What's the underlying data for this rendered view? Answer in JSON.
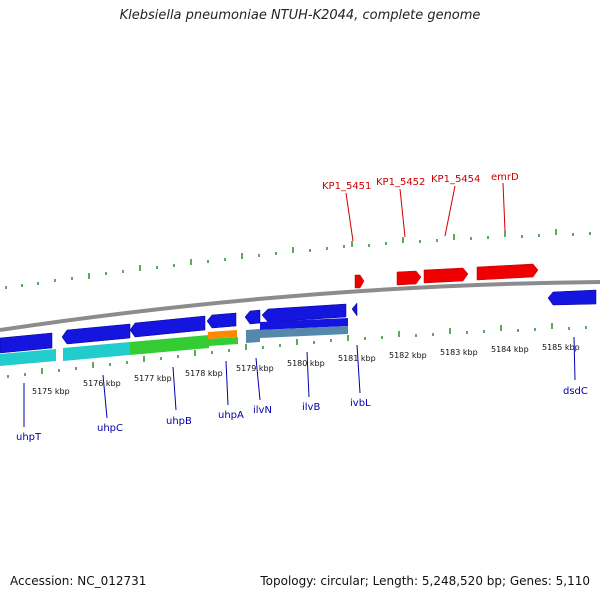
{
  "title": "Klebsiella pneumoniae NTUH-K2044, complete genome",
  "footer": {
    "accession": "Accession: NC_012731",
    "summary": "Topology: circular; Length: 5,248,520 bp; Genes: 5,110"
  },
  "colors": {
    "forward": "#ee0000",
    "reverse": "#0000ee",
    "backbone": "#888888",
    "ticks": "#2a8a2a",
    "label_forward": "#cc0000",
    "label_reverse": "#0000aa"
  },
  "scale_labels": [
    "5175 kbp",
    "5176 kbp",
    "5177 kbp",
    "5178 kbp",
    "5179 kbp",
    "5180 kbp",
    "5181 kbp",
    "5182 kbp",
    "5183 kbp",
    "5184 kbp",
    "5185 kbp"
  ],
  "forward_genes": [
    "KP1_5451",
    "KP1_5452",
    "KP1_5454",
    "emrD"
  ],
  "reverse_genes": [
    "uhpT",
    "uhpC",
    "uhpB",
    "uhpA",
    "ilvN",
    "ilvB",
    "ivbL",
    "dsdC"
  ]
}
